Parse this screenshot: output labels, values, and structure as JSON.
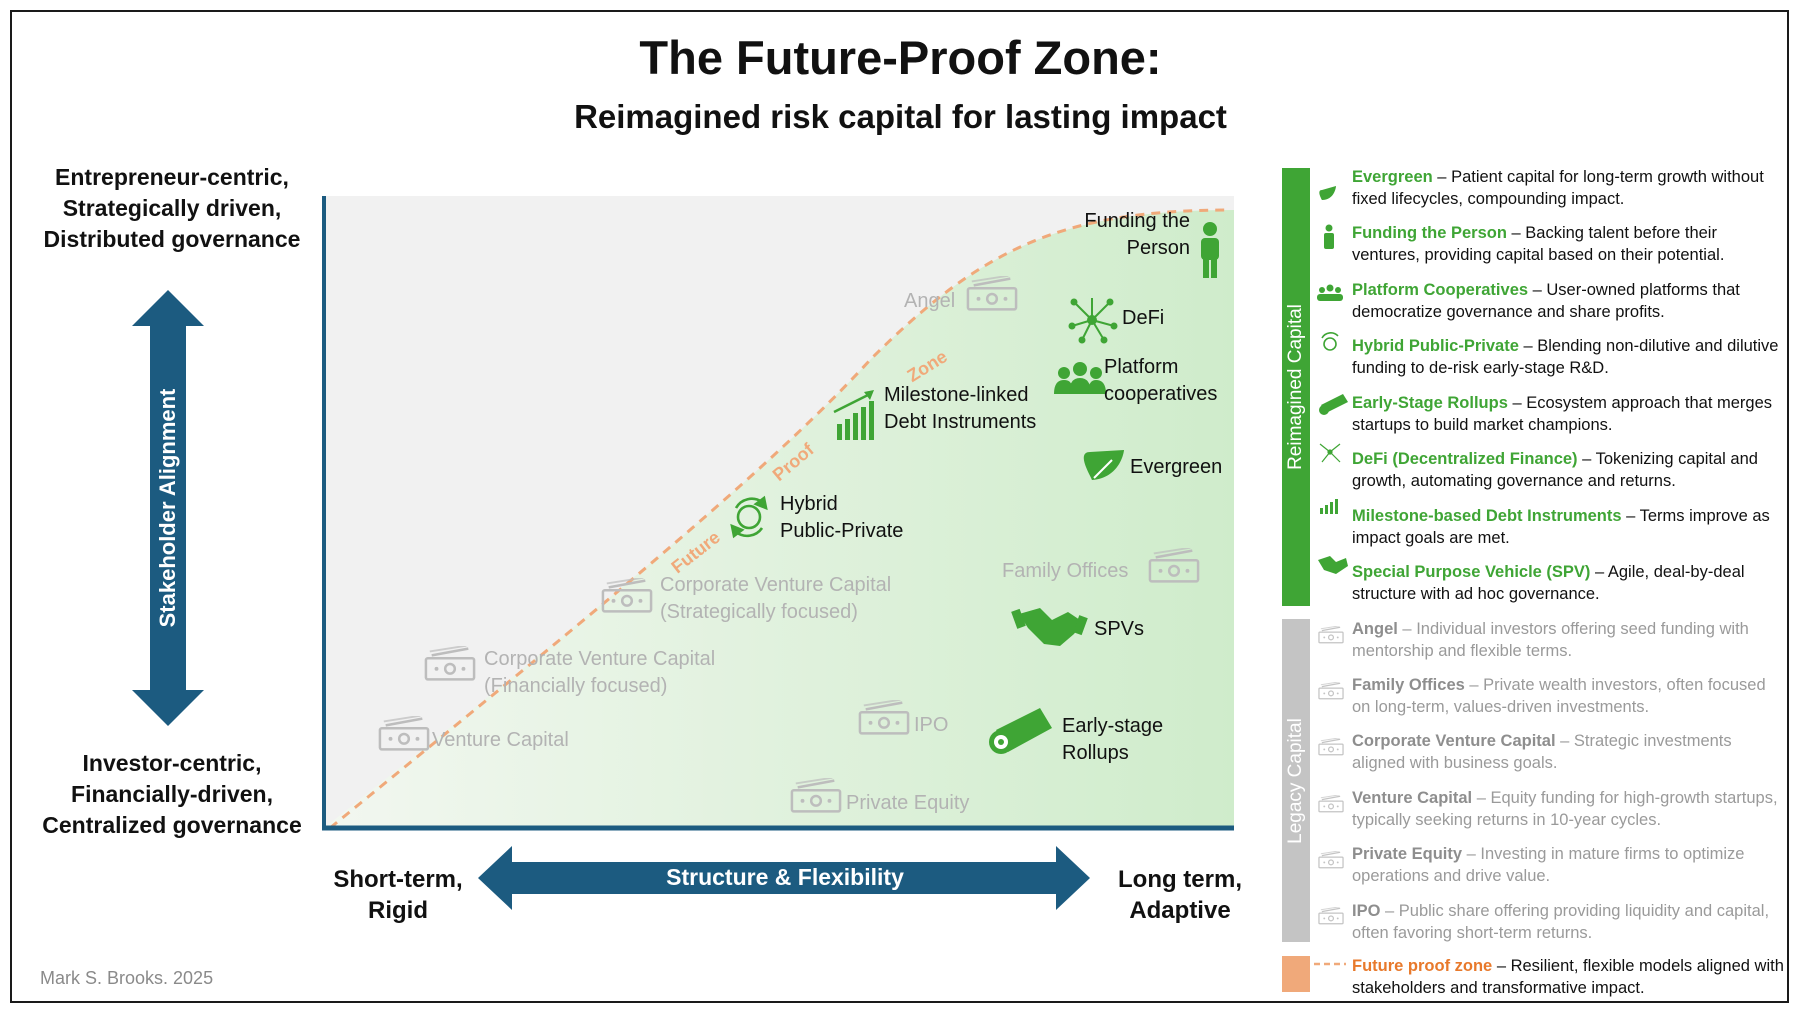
{
  "header": {
    "title": "The Future-Proof Zone:",
    "subtitle": "Reimagined risk capital for lasting impact"
  },
  "axes": {
    "y_top": [
      "Entrepreneur-centric,",
      "Strategically driven,",
      "Distributed governance"
    ],
    "y_bottom": [
      "Investor-centric,",
      "Financially-driven,",
      "Centralized governance"
    ],
    "y_title": "Stakeholder Alignment",
    "x_left": [
      "Short-term,",
      "Rigid"
    ],
    "x_right": [
      "Long term,",
      "Adaptive"
    ],
    "x_title": "Structure & Flexibility"
  },
  "zone_label": "Future-Proof Zone",
  "zone_words": [
    "Future",
    "Proof",
    "Zone"
  ],
  "reimagined_items": [
    {
      "key": "funding-person",
      "lines": [
        "Funding the",
        "Person"
      ],
      "icon": "person-icon"
    },
    {
      "key": "defi",
      "lines": [
        "DeFi"
      ],
      "icon": "network-icon"
    },
    {
      "key": "platform-coop",
      "lines": [
        "Platform",
        "cooperatives"
      ],
      "icon": "people-group-icon"
    },
    {
      "key": "milestone",
      "lines": [
        "Milestone-linked",
        "Debt Instruments"
      ],
      "icon": "bar-growth-icon"
    },
    {
      "key": "evergreen",
      "lines": [
        "Evergreen"
      ],
      "icon": "leaf-icon"
    },
    {
      "key": "hybrid",
      "lines": [
        "Hybrid",
        "Public-Private"
      ],
      "icon": "cycle-icon"
    },
    {
      "key": "spv",
      "lines": [
        "SPVs"
      ],
      "icon": "handshake-icon"
    },
    {
      "key": "rollups",
      "lines": [
        "Early-stage",
        "Rollups"
      ],
      "icon": "roll-icon"
    }
  ],
  "legacy_items": [
    {
      "key": "angel",
      "lines": [
        "Angel"
      ]
    },
    {
      "key": "family-offices",
      "lines": [
        "Family Offices"
      ]
    },
    {
      "key": "cvc-strategic",
      "lines": [
        "Corporate Venture Capital",
        "(Strategically focused)"
      ]
    },
    {
      "key": "cvc-financial",
      "lines": [
        "Corporate Venture Capital",
        "(Financially focused)"
      ]
    },
    {
      "key": "vc",
      "lines": [
        "Venture Capital"
      ]
    },
    {
      "key": "ipo",
      "lines": [
        "IPO"
      ]
    },
    {
      "key": "pe",
      "lines": [
        "Private Equity"
      ]
    }
  ],
  "legend": {
    "reimagined_title": "Reimagined Capital",
    "legacy_title": "Legacy Capital",
    "reimagined": [
      {
        "name": "Evergreen",
        "desc": " – Patient capital for long-term growth without fixed lifecycles, compounding impact.",
        "icon": "leaf-icon"
      },
      {
        "name": "Funding the Person",
        "desc": " – Backing talent before their ventures, providing capital based on their potential.",
        "icon": "person-icon"
      },
      {
        "name": "Platform Cooperatives",
        "desc": " – User-owned platforms that democratize governance and share profits.",
        "icon": "people-group-icon"
      },
      {
        "name": "Hybrid Public-Private",
        "desc": " – Blending non-dilutive and dilutive funding to de-risk early-stage R&D.",
        "icon": "cycle-icon"
      },
      {
        "name": "Early-Stage Rollups",
        "desc": " – Ecosystem approach that merges startups to build market champions.",
        "icon": "roll-icon"
      },
      {
        "name": "DeFi (Decentralized Finance)",
        "desc": " – Tokenizing capital and growth, automating governance and returns.",
        "icon": "network-icon"
      },
      {
        "name": "Milestone-based Debt Instruments",
        "desc": " – Terms improve as impact goals are met.",
        "icon": "bar-growth-icon"
      },
      {
        "name": "Special Purpose Vehicle (SPV)",
        "desc": " – Agile, deal-by-deal structure with ad hoc governance.",
        "icon": "handshake-icon"
      }
    ],
    "legacy": [
      {
        "name": "Angel",
        "desc": " – Individual investors offering seed funding with mentorship and flexible terms."
      },
      {
        "name": "Family Offices",
        "desc": " – Private wealth investors, often focused on long-term, values-driven investments."
      },
      {
        "name": "Corporate Venture Capital",
        "desc": " – Strategic investments aligned with business goals."
      },
      {
        "name": "Venture Capital",
        "desc": " – Equity funding for high-growth startups, typically seeking returns in 10-year cycles."
      },
      {
        "name": "Private Equity",
        "desc": " – Investing in mature firms to optimize operations and drive value."
      },
      {
        "name": "IPO",
        "desc": " – Public share offering providing liquidity and capital, often favoring short-term returns."
      }
    ],
    "zone": {
      "name": "Future proof zone",
      "desc": " – Resilient, flexible models aligned with stakeholders and transformative impact."
    }
  },
  "credit": "Mark S. Brooks.  2025",
  "colors": {
    "green": "#3fa535",
    "navy": "#1c5b80",
    "grey": "#b3b3b3",
    "orange": "#f0a97a"
  }
}
